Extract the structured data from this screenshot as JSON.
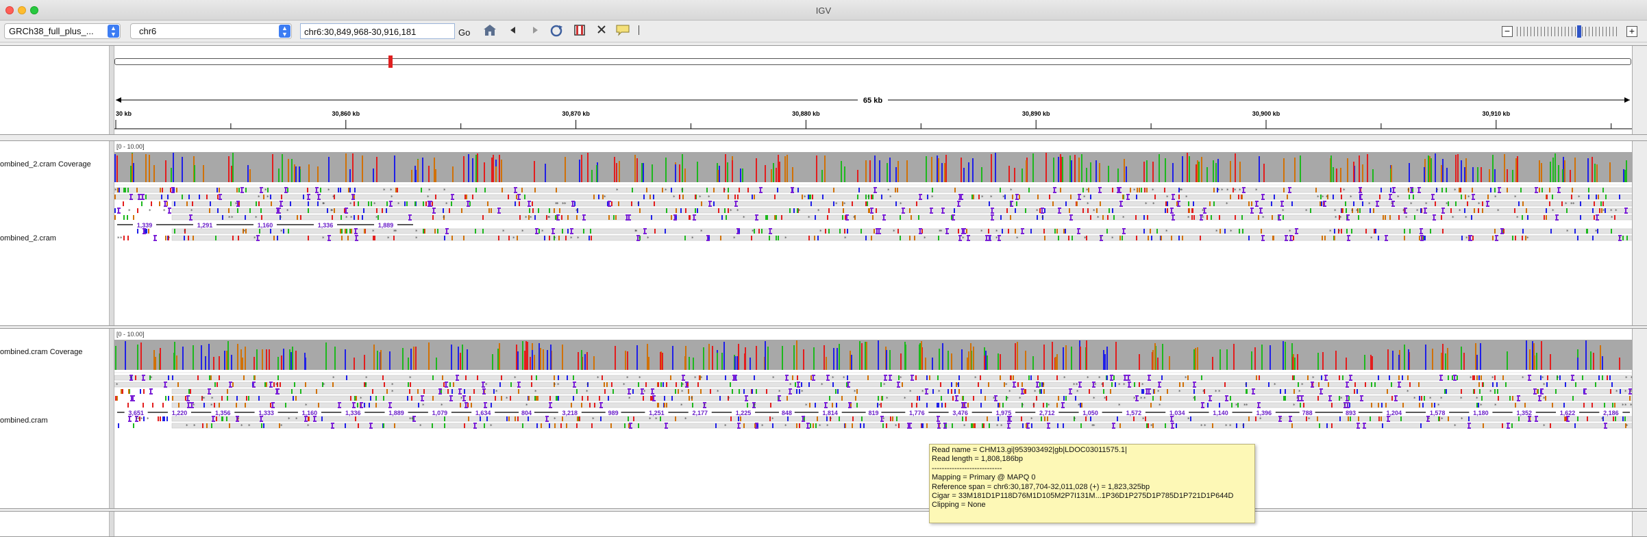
{
  "window": {
    "title": "IGV"
  },
  "toolbar": {
    "genome": "GRCh38_full_plus_...",
    "chromosome": "chr6",
    "locus": "chr6:30,849,968-30,916,181",
    "go_label": "Go"
  },
  "ruler": {
    "span_label": "65 kb",
    "ticks": [
      "30 kb",
      "30,860 kb",
      "30,870 kb",
      "30,880 kb",
      "30,890 kb",
      "30,900 kb",
      "30,910 kb"
    ]
  },
  "tracks": [
    {
      "coverage_name": "ombined_2.cram Coverage",
      "alignment_name": "ombined_2.cram",
      "range": "[0 - 10.00]"
    },
    {
      "coverage_name": "ombined.cram Coverage",
      "alignment_name": "ombined.cram",
      "range": "[0 - 10.00]"
    }
  ],
  "deletion_labels_1": [
    "1,339",
    "1,291",
    "1,160",
    "1,336",
    "1,889"
  ],
  "deletion_labels_2": [
    "3,651",
    "1,220",
    "1,356",
    "1,333",
    "1,160",
    "1,336",
    "1,889",
    "1,079",
    "1,634",
    "804",
    "3,218",
    "989",
    "1,251",
    "2,177",
    "1,225",
    "848",
    "1,814",
    "819",
    "1,776",
    "3,476",
    "1,975",
    "2,712",
    "1,050",
    "1,572",
    "1,034",
    "1,140",
    "1,396",
    "788",
    "893",
    "1,204",
    "1,578",
    "1,180",
    "1,352",
    "1,622",
    "2,186"
  ],
  "popup": {
    "read_name": "Read name = CHM13.gi|953903492|gb|LDOC03011575.1|",
    "read_length": "Read length = 1,808,186bp",
    "divider": "----------------------------",
    "mapping": "Mapping = Primary @ MAPQ 0",
    "reference_span": "Reference span = chr6:30,187,704-32,011,028 (+) = 1,823,325bp",
    "cigar": "Cigar = 33M181D1P118D76M1D105M2P7I131M...1P36D1P275D1P785D1P721D1P644D",
    "clipping": "Clipping = None"
  },
  "colors": {
    "coverage": "#a8a8a8",
    "A": "#1db81d",
    "C": "#1f1fe8",
    "G": "#d17105",
    "T": "#e31d1d",
    "insertion": "#7a1fd6"
  },
  "icons": [
    "home-icon",
    "back-icon",
    "forward-icon",
    "refresh-icon",
    "roi-icon",
    "close-icon",
    "popup-icon"
  ]
}
